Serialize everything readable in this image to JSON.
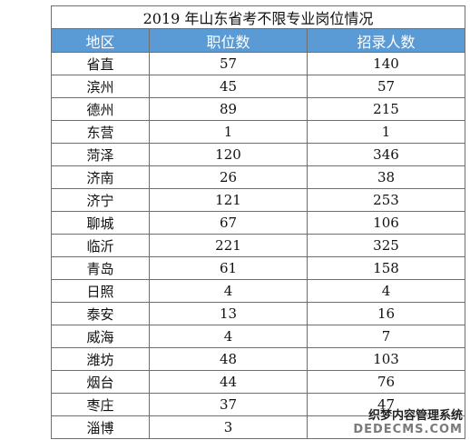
{
  "table": {
    "title": "2019 年山东省考不限专业岗位情况",
    "columns": [
      "地区",
      "职位数",
      "招录人数"
    ],
    "rows": [
      [
        "省直",
        "57",
        "140"
      ],
      [
        "滨州",
        "45",
        "57"
      ],
      [
        "德州",
        "89",
        "215"
      ],
      [
        "东营",
        "1",
        "1"
      ],
      [
        "菏泽",
        "120",
        "346"
      ],
      [
        "济南",
        "26",
        "38"
      ],
      [
        "济宁",
        "121",
        "253"
      ],
      [
        "聊城",
        "67",
        "106"
      ],
      [
        "临沂",
        "221",
        "325"
      ],
      [
        "青岛",
        "61",
        "158"
      ],
      [
        "日照",
        "4",
        "4"
      ],
      [
        "泰安",
        "13",
        "16"
      ],
      [
        "威海",
        "4",
        "7"
      ],
      [
        "潍坊",
        "48",
        "103"
      ],
      [
        "烟台",
        "44",
        "76"
      ],
      [
        "枣庄",
        "37",
        "47"
      ],
      [
        "淄博",
        "3",
        ""
      ]
    ]
  },
  "watermark": {
    "text_cn": "织梦内容管理系统",
    "text_en": "DEDECMS.COM"
  }
}
